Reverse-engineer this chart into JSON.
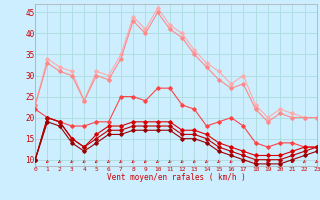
{
  "x": [
    0,
    1,
    2,
    3,
    4,
    5,
    6,
    7,
    8,
    9,
    10,
    11,
    12,
    13,
    14,
    15,
    16,
    17,
    18,
    19,
    20,
    21,
    22,
    23
  ],
  "line1": [
    23,
    34,
    32,
    31,
    24,
    31,
    30,
    35,
    44,
    41,
    46,
    42,
    40,
    36,
    33,
    31,
    28,
    30,
    23,
    20,
    22,
    21,
    20,
    20
  ],
  "line2": [
    23,
    33,
    31,
    30,
    24,
    30,
    29,
    34,
    43,
    40,
    45,
    41,
    39,
    35,
    32,
    29,
    27,
    28,
    22,
    19,
    21,
    20,
    20,
    20
  ],
  "line3": [
    22,
    20,
    19,
    18,
    18,
    19,
    19,
    25,
    25,
    24,
    27,
    27,
    23,
    22,
    18,
    19,
    20,
    18,
    14,
    13,
    14,
    14,
    13,
    13
  ],
  "line4": [
    10,
    20,
    19,
    15,
    13,
    16,
    18,
    18,
    19,
    19,
    19,
    19,
    17,
    17,
    16,
    14,
    13,
    12,
    11,
    11,
    11,
    12,
    13,
    13
  ],
  "line5": [
    10,
    20,
    19,
    15,
    13,
    15,
    17,
    17,
    18,
    18,
    18,
    18,
    16,
    16,
    15,
    13,
    12,
    11,
    10,
    10,
    10,
    11,
    12,
    13
  ],
  "line6": [
    10,
    19,
    18,
    14,
    12,
    14,
    16,
    16,
    17,
    17,
    17,
    17,
    15,
    15,
    14,
    12,
    11,
    10,
    9,
    9,
    9,
    10,
    11,
    12
  ],
  "bg_color": "#cceeff",
  "grid_color": "#aadddd",
  "line1_color": "#ffaaaa",
  "line2_color": "#ff8888",
  "line3_color": "#ff4444",
  "line4_color": "#dd0000",
  "line5_color": "#bb0000",
  "line6_color": "#990000",
  "xlabel": "Vent moyen/en rafales ( km/h )",
  "ylabel_ticks": [
    10,
    15,
    20,
    25,
    30,
    35,
    40,
    45
  ],
  "xlim": [
    0,
    23
  ],
  "ylim": [
    8.5,
    47
  ],
  "figsize": [
    3.2,
    2.0
  ],
  "dpi": 100
}
